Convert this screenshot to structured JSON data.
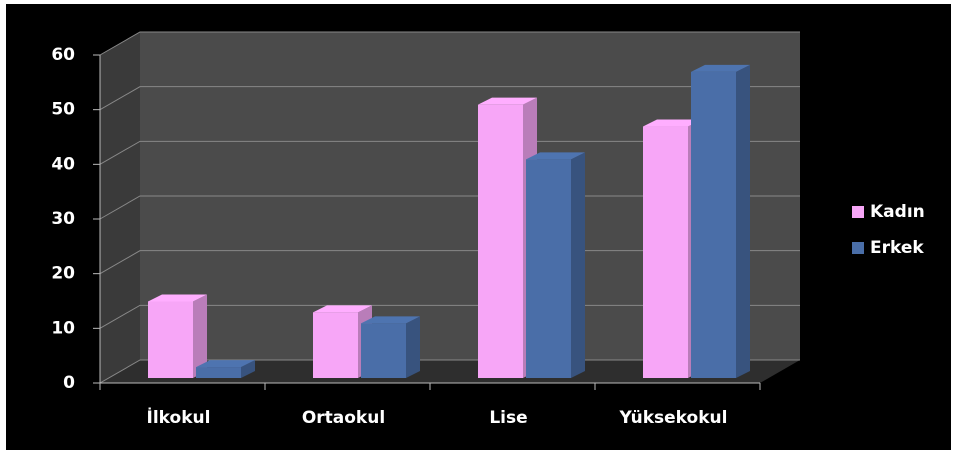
{
  "chart_data": {
    "type": "bar3d",
    "categories": [
      "İlkokul",
      "Ortaokul",
      "Lise",
      "Yüksekokul"
    ],
    "series": [
      {
        "name": "Kadın",
        "color": "#f7a6f7",
        "values": [
          14,
          12,
          50,
          46
        ]
      },
      {
        "name": "Erkek",
        "color": "#4a6ea8",
        "values": [
          2,
          10,
          40,
          56
        ]
      }
    ],
    "ylim": [
      0,
      60
    ],
    "yticks": [
      0,
      10,
      20,
      30,
      40,
      50,
      60
    ],
    "grid": true,
    "legend": "right"
  }
}
